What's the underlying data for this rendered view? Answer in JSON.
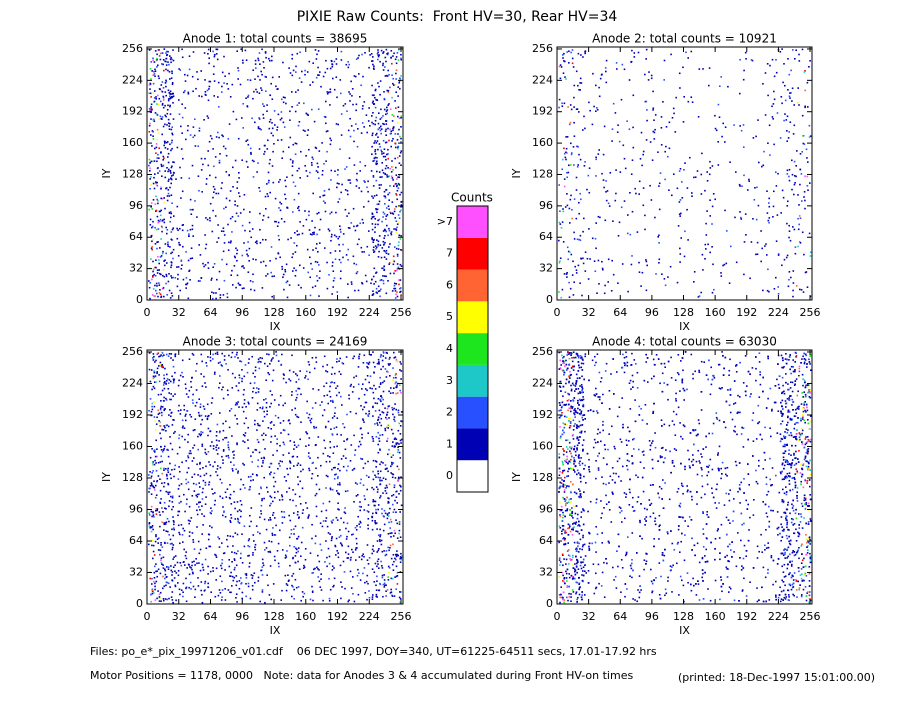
{
  "title": "PIXIE Raw Counts:  Front HV=30, Rear HV=34",
  "chart_data": [
    {
      "type": "heatmap",
      "title": "Anode 1: total counts = 38695",
      "x_label": "IX",
      "y_label": "IY",
      "xlim": [
        0,
        258
      ],
      "ylim": [
        0,
        258
      ],
      "xticks": [
        0,
        32,
        64,
        96,
        128,
        160,
        192,
        224,
        256
      ],
      "yticks": [
        0,
        32,
        64,
        96,
        128,
        160,
        192,
        224,
        256
      ]
    },
    {
      "type": "heatmap",
      "title": "Anode 2: total counts = 10921",
      "x_label": "IX",
      "y_label": "IY",
      "xlim": [
        0,
        258
      ],
      "ylim": [
        0,
        258
      ],
      "xticks": [
        0,
        32,
        64,
        96,
        128,
        160,
        192,
        224,
        256
      ],
      "yticks": [
        0,
        32,
        64,
        96,
        128,
        160,
        192,
        224,
        256
      ]
    },
    {
      "type": "heatmap",
      "title": "Anode 3: total counts = 24169",
      "x_label": "IX",
      "y_label": "IY",
      "xlim": [
        0,
        258
      ],
      "ylim": [
        0,
        258
      ],
      "xticks": [
        0,
        32,
        64,
        96,
        128,
        160,
        192,
        224,
        256
      ],
      "yticks": [
        0,
        32,
        64,
        96,
        128,
        160,
        192,
        224,
        256
      ]
    },
    {
      "type": "heatmap",
      "title": "Anode 4: total counts = 63030",
      "x_label": "IX",
      "y_label": "IY",
      "xlim": [
        0,
        258
      ],
      "ylim": [
        0,
        258
      ],
      "xticks": [
        0,
        32,
        64,
        96,
        128,
        160,
        192,
        224,
        256
      ],
      "yticks": [
        0,
        32,
        64,
        96,
        128,
        160,
        192,
        224,
        256
      ]
    }
  ],
  "colorbar": {
    "title": "Counts",
    "labels": [
      "0",
      "1",
      "2",
      "3",
      "4",
      "5",
      "6",
      "7",
      ">7"
    ],
    "colors": [
      "#ffffff",
      "#0000b4",
      "#2850ff",
      "#1ec8c8",
      "#1ee61e",
      "#ffff00",
      "#ff6432",
      "#ff0000",
      "#ff50ff"
    ]
  },
  "footer": {
    "files": "Files: po_e*_pix_19971206_v01.cdf    06 DEC 1997, DOY=340, UT=61225-64511 secs, 17.01-17.92 hrs",
    "motor": "Motor Positions = 1178, 0000   Note: data for Anodes 3 & 4 accumulated during Front HV-on times",
    "printed": "(printed: 18-Dec-1997 15:01:00.00)"
  }
}
